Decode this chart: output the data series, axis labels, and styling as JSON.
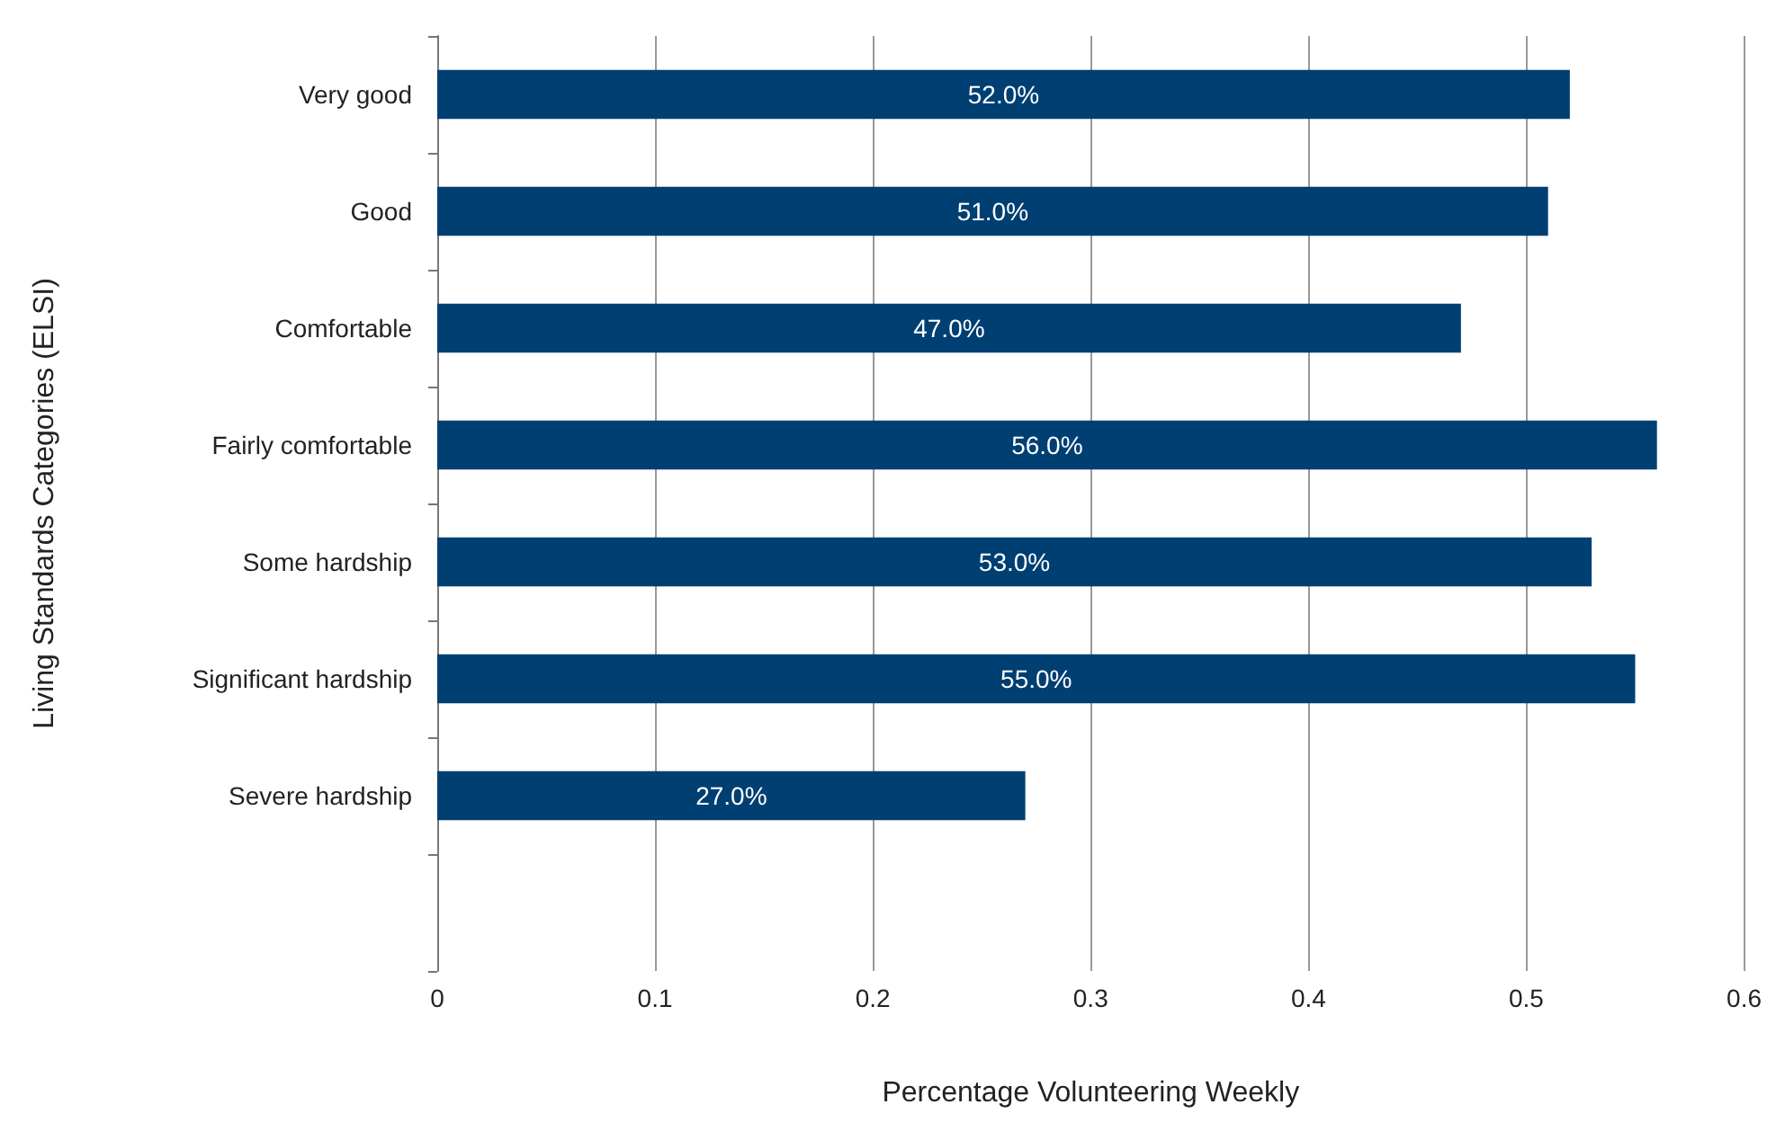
{
  "chart_data": {
    "type": "bar",
    "orientation": "horizontal",
    "xlabel": "Percentage Volunteering Weekly",
    "ylabel": "Living Standards Categories (ELSI)",
    "categories": [
      "Very good",
      "Good",
      "Comfortable",
      "Fairly comfortable",
      "Some hardship",
      "Significant hardship",
      "Severe hardship",
      null
    ],
    "values": [
      0.52,
      0.51,
      0.47,
      0.56,
      0.53,
      0.55,
      0.27,
      null
    ],
    "value_labels": [
      "52.0%",
      "51.0%",
      "47.0%",
      "56.0%",
      "53.0%",
      "55.0%",
      "27.0%",
      null
    ],
    "color": "#003f72",
    "xlim": [
      0,
      0.6
    ],
    "xticks": [
      0,
      0.1,
      0.2,
      0.3,
      0.4,
      0.5,
      0.6
    ],
    "grid": "x"
  }
}
